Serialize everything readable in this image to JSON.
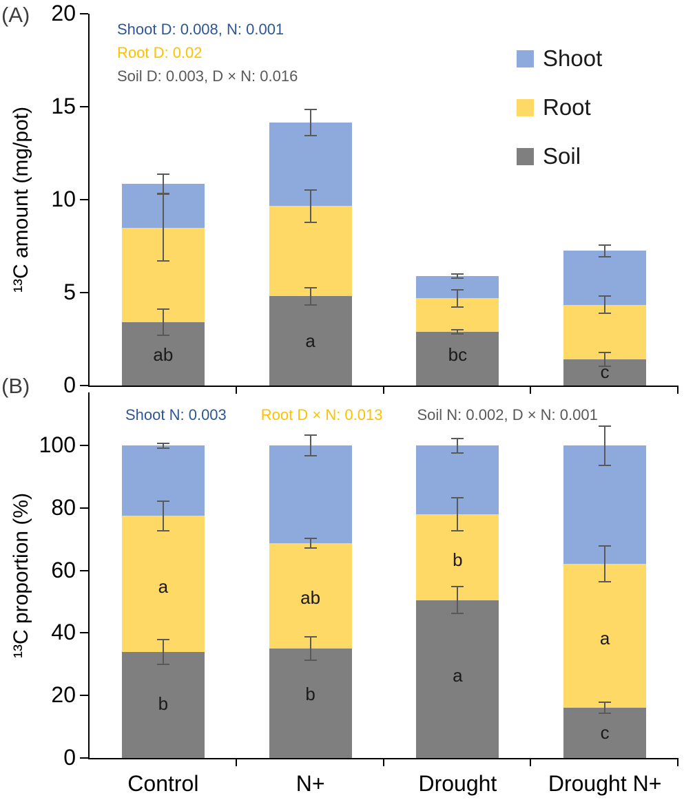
{
  "chart_data": [
    {
      "panel_label": "(A)",
      "type": "bar",
      "stacked": true,
      "title": "",
      "xlabel": "",
      "ylabel": "¹³C amount (mg/pot)",
      "ylim": [
        0,
        20
      ],
      "ticks": [
        0,
        5,
        10,
        15,
        20
      ],
      "grid": false,
      "legend_position": "top-right-inside",
      "categories": [
        "Control",
        "N+",
        "Drought",
        "Drought N+"
      ],
      "series": [
        {
          "name": "Soil",
          "color": "#7F7F7F",
          "values": [
            3.4,
            4.8,
            2.9,
            1.4
          ]
        },
        {
          "name": "Root",
          "color": "#FFD966",
          "values": [
            5.1,
            4.85,
            1.8,
            2.95
          ]
        },
        {
          "name": "Shoot",
          "color": "#8EA9DB",
          "values": [
            2.35,
            4.5,
            1.2,
            2.9
          ]
        }
      ],
      "errors": [
        {
          "series": "Soil",
          "values": [
            0.75,
            0.5,
            0.15,
            0.4
          ]
        },
        {
          "series": "Root",
          "values": [
            1.85,
            0.9,
            0.5,
            0.5
          ]
        },
        {
          "series": "Shoot",
          "values": [
            0.55,
            0.75,
            0.15,
            0.35
          ]
        }
      ],
      "letters": [
        {
          "category": "Control",
          "text": "ab",
          "value": 1.6
        },
        {
          "category": "N+",
          "text": "a",
          "value": 2.35
        },
        {
          "category": "Drought",
          "text": "bc",
          "value": 1.6
        },
        {
          "category": "Drought N+",
          "text": "c",
          "value": 0.65
        }
      ],
      "annotations": [
        {
          "text": "Shoot D: 0.008, N: 0.001",
          "color": "#2E5597"
        },
        {
          "text": "Root D: 0.02",
          "color": "#FFC000"
        },
        {
          "text": "Soil D: 0.003, D × N: 0.016",
          "color": "#595959"
        }
      ],
      "legend": [
        {
          "label": "Shoot",
          "color": "#8EA9DB"
        },
        {
          "label": "Root",
          "color": "#FFD966"
        },
        {
          "label": "Soil",
          "color": "#7F7F7F"
        }
      ]
    },
    {
      "panel_label": "(B)",
      "type": "bar",
      "stacked": true,
      "title": "",
      "xlabel": "",
      "ylabel": "¹³C proportion (%)",
      "ylim": [
        0,
        100
      ],
      "ticks": [
        0,
        20,
        40,
        60,
        80,
        100
      ],
      "grid": false,
      "categories": [
        "Control",
        "N+",
        "Drought",
        "Drought N+"
      ],
      "series": [
        {
          "name": "Soil",
          "color": "#7F7F7F",
          "values": [
            34.0,
            35.0,
            50.5,
            16.0
          ]
        },
        {
          "name": "Root",
          "color": "#FFD966",
          "values": [
            43.5,
            33.7,
            27.5,
            46.1
          ]
        },
        {
          "name": "Shoot",
          "color": "#8EA9DB",
          "values": [
            22.5,
            31.3,
            22.0,
            37.9
          ]
        }
      ],
      "errors": [
        {
          "series": "Soil",
          "values": [
            4.2,
            4.0,
            4.5,
            2.0
          ]
        },
        {
          "series": "Root",
          "values": [
            5.0,
            1.8,
            5.5,
            6.0
          ]
        },
        {
          "series": "Shoot",
          "values": [
            1.0,
            3.5,
            2.5,
            6.5
          ]
        }
      ],
      "letters": [
        {
          "category": "Control",
          "text": "a",
          "value": 54.5
        },
        {
          "category": "Control",
          "text": "b",
          "value": 17.0
        },
        {
          "category": "N+",
          "text": "ab",
          "value": 51.0
        },
        {
          "category": "N+",
          "text": "b",
          "value": 20.0
        },
        {
          "category": "Drought",
          "text": "b",
          "value": 63.0
        },
        {
          "category": "Drought",
          "text": "a",
          "value": 26.0
        },
        {
          "category": "Drought N+",
          "text": "a",
          "value": 38.0
        },
        {
          "category": "Drought N+",
          "text": "c",
          "value": 7.7
        }
      ],
      "annotations": [
        {
          "text": "Shoot N: 0.003",
          "color": "#2E5597"
        },
        {
          "text": "Root D × N: 0.013",
          "color": "#FFC000"
        },
        {
          "text": "Soil N: 0.002, D × N: 0.001",
          "color": "#595959"
        }
      ]
    }
  ]
}
